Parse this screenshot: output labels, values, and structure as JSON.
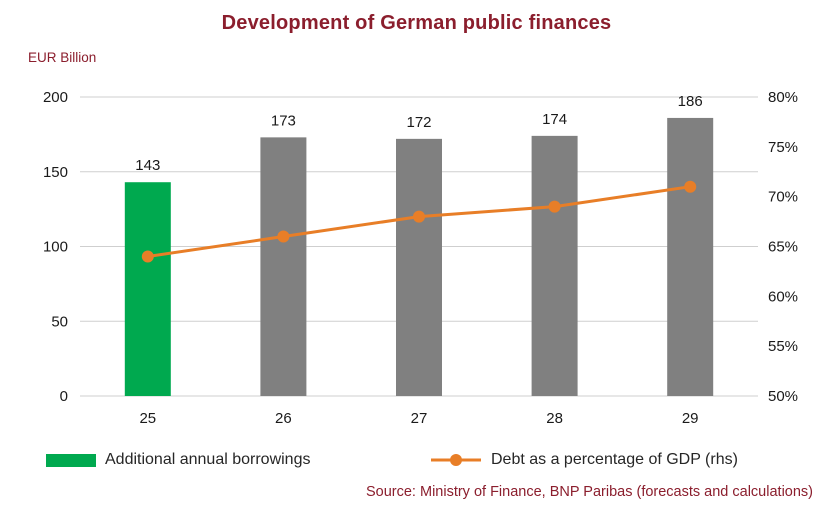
{
  "colors": {
    "accent_text": "#8B1E2D",
    "bar_highlight": "#00A94F",
    "bar_default": "#808080",
    "line": "#E87E27",
    "gridline": "#CFCFCF",
    "axis_text": "#1a1a1a"
  },
  "chart_data": {
    "type": "bar",
    "title": "Development of German public finances",
    "y_left_label": "EUR Billion",
    "categories": [
      "25",
      "26",
      "27",
      "28",
      "29"
    ],
    "series": [
      {
        "name": "Additional annual borrowings",
        "type": "bar",
        "axis": "left",
        "values": [
          143,
          173,
          172,
          174,
          186
        ],
        "colors": [
          "#00A94F",
          "#808080",
          "#808080",
          "#808080",
          "#808080"
        ]
      },
      {
        "name": "Debt as a percentage of GDP (rhs)",
        "type": "line",
        "axis": "right",
        "values": [
          64,
          66,
          68,
          69,
          71
        ],
        "color": "#E87E27"
      }
    ],
    "left_axis": {
      "min": 0,
      "max": 200,
      "ticks": [
        0,
        50,
        100,
        150,
        200
      ]
    },
    "right_axis": {
      "min": 50,
      "max": 80,
      "ticks": [
        50,
        55,
        60,
        65,
        70,
        75,
        80
      ],
      "suffix": "%"
    },
    "grid": "horizontal",
    "legend_position": "bottom",
    "source": "Source: Ministry of Finance, BNP Paribas (forecasts and calculations)"
  }
}
